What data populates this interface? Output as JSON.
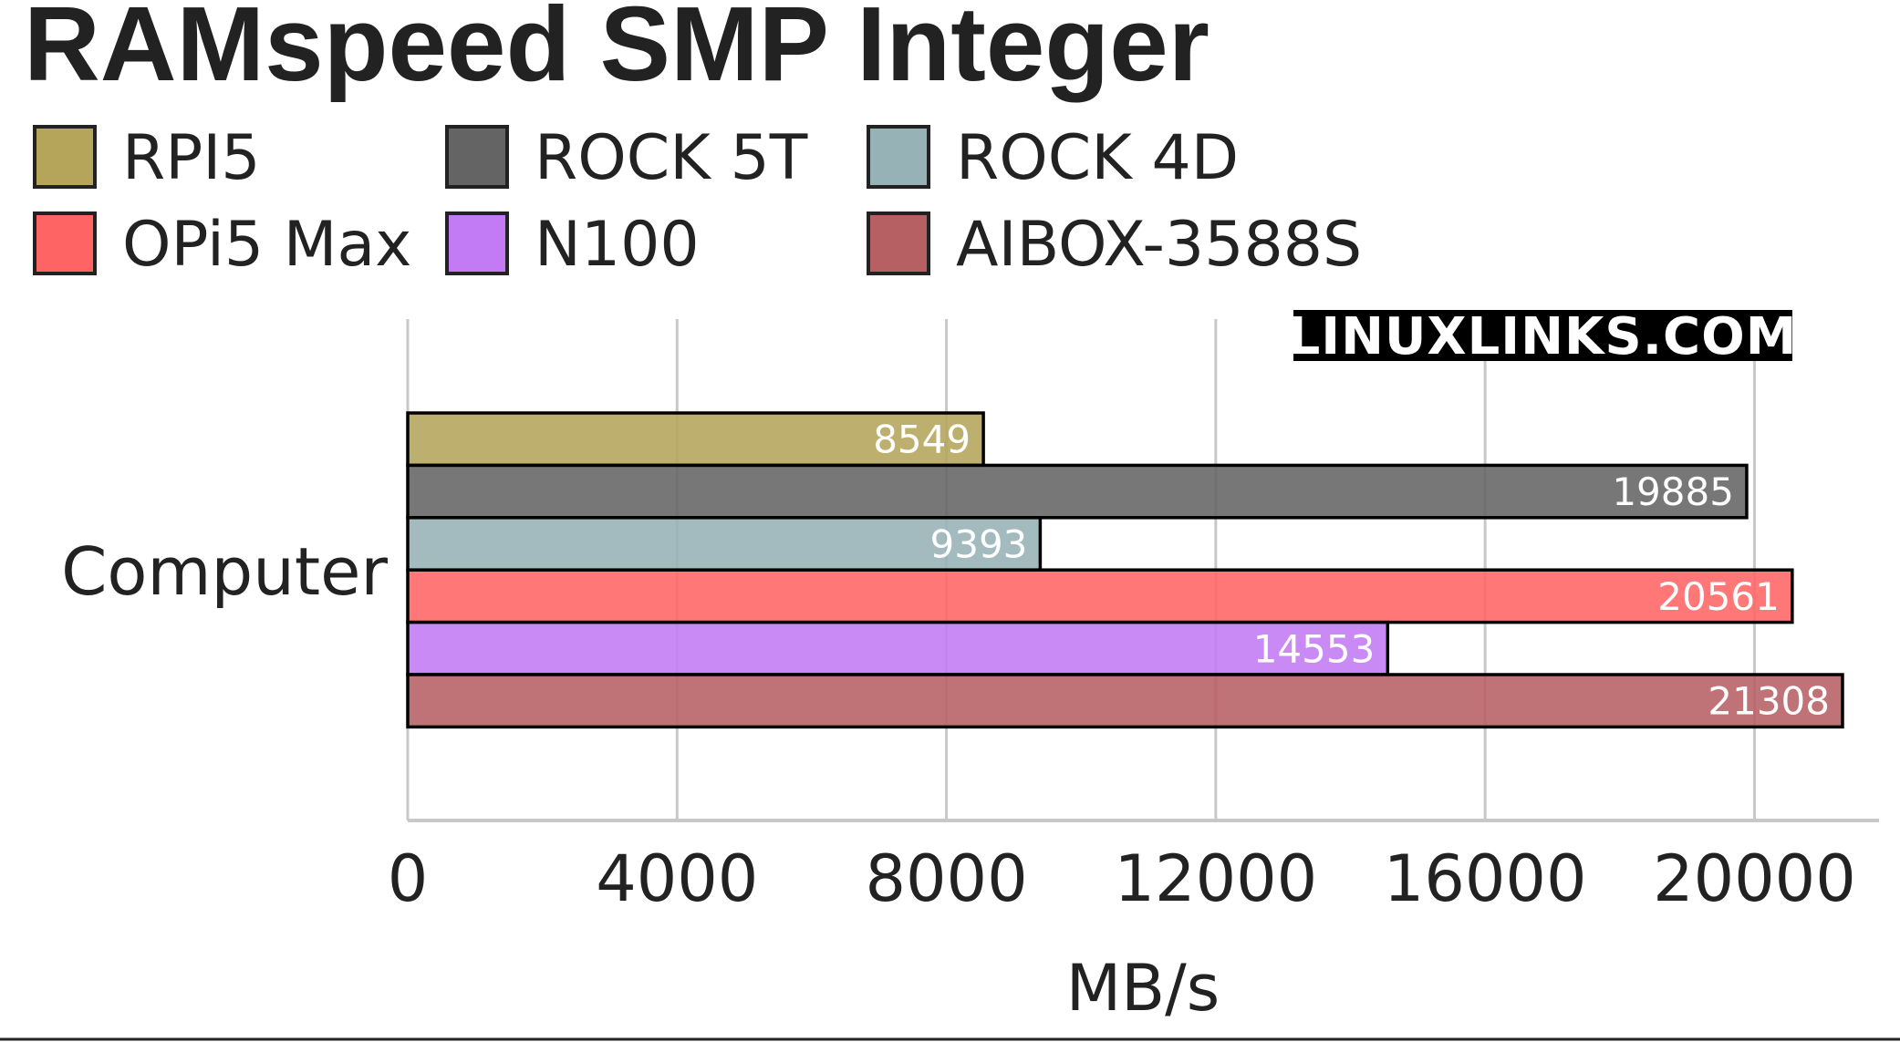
{
  "chart_data": {
    "type": "bar",
    "orientation": "horizontal",
    "title": "RAMspeed SMP Integer",
    "xlabel": "MB/s",
    "categories": [
      "Computer"
    ],
    "xlim": [
      0,
      21850
    ],
    "xticks": [
      "0",
      "4000",
      "8000",
      "12000",
      "16000",
      "20000"
    ],
    "grid": "vertical",
    "legend_position": "top-left",
    "watermark": "LINUXLINKS.COM",
    "series": [
      {
        "name": "RPI5",
        "values": [
          8549
        ],
        "color": "#b4a55a"
      },
      {
        "name": "ROCK 5T",
        "values": [
          19885
        ],
        "color": "#646464"
      },
      {
        "name": "ROCK 4D",
        "values": [
          9393
        ],
        "color": "#96b2b6"
      },
      {
        "name": "OPi5 Max",
        "values": [
          20561
        ],
        "color": "#ff6464"
      },
      {
        "name": "N100",
        "values": [
          14553
        ],
        "color": "#c27af5"
      },
      {
        "name": "AIBOX-3588S",
        "values": [
          21308
        ],
        "color": "#b76064"
      }
    ]
  }
}
